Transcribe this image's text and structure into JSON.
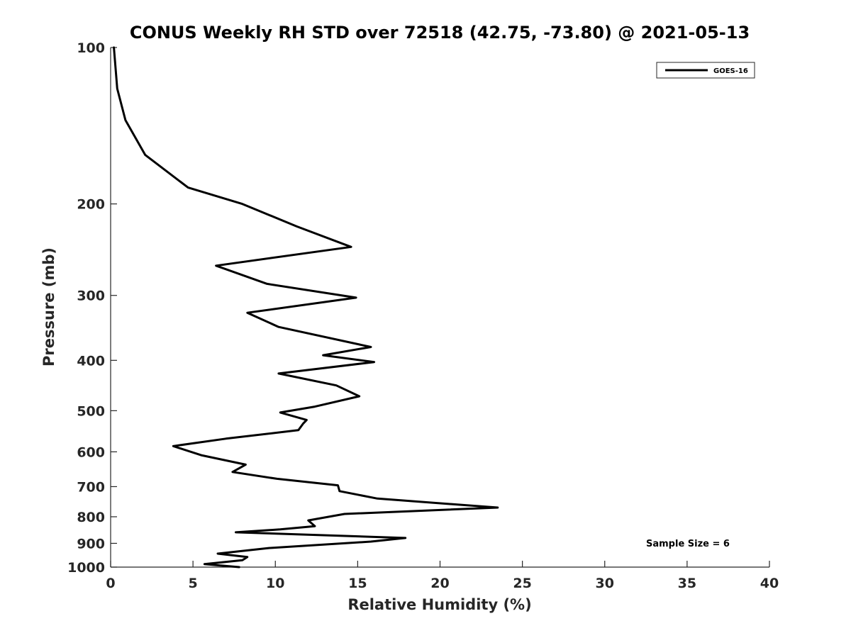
{
  "chart_data": {
    "type": "line",
    "title": "CONUS Weekly RH STD over 72518 (42.75, -73.80) @ 2021-05-13",
    "xlabel": "Relative Humidity (%)",
    "ylabel": "Pressure (mb)",
    "xlim": [
      0,
      40
    ],
    "ylim": [
      100,
      1000
    ],
    "y_scale": "log",
    "y_reversed": true,
    "x_ticks": [
      0,
      5,
      10,
      15,
      20,
      25,
      30,
      35,
      40
    ],
    "x_tick_labels": [
      "0",
      "5",
      "10",
      "15",
      "20",
      "25",
      "30",
      "35",
      "40"
    ],
    "y_ticks": [
      100,
      200,
      300,
      400,
      500,
      600,
      700,
      800,
      900,
      1000
    ],
    "y_tick_labels": [
      "100",
      "200",
      "300",
      "400",
      "500",
      "600",
      "700",
      "800",
      "900",
      "1000"
    ],
    "grid": false,
    "legend_position": "top-right",
    "line_color": "#000000",
    "series": [
      {
        "name": "GOES-16",
        "x": [
          0.2,
          0.4,
          0.9,
          2.1,
          4.7,
          8.0,
          11.3,
          14.6,
          6.4,
          9.5,
          14.9,
          8.3,
          10.2,
          15.8,
          12.9,
          16.0,
          10.2,
          13.7,
          15.1,
          12.4,
          10.3,
          11.9,
          11.7,
          11.4,
          7.0,
          3.8,
          5.5,
          8.2,
          7.4,
          10.1,
          13.8,
          13.9,
          16.2,
          23.5,
          14.2,
          12.0,
          12.4,
          10.3,
          7.6,
          17.9,
          15.8,
          9.6,
          6.5,
          8.3,
          8.0,
          5.7,
          7.8
        ]
      },
      {
        "name": "",
        "y": [
          100,
          120,
          138,
          161,
          186,
          200,
          221,
          242,
          263,
          285,
          303,
          324,
          345,
          377,
          391,
          403,
          424,
          447,
          469,
          491,
          504,
          521,
          529,
          545,
          566,
          585,
          609,
          635,
          656,
          676,
          696,
          714,
          738,
          768,
          790,
          813,
          834,
          846,
          857,
          879,
          893,
          919,
          942,
          956,
          970,
          987,
          1000
        ]
      }
    ],
    "annotation": "Sample Size = 6"
  }
}
